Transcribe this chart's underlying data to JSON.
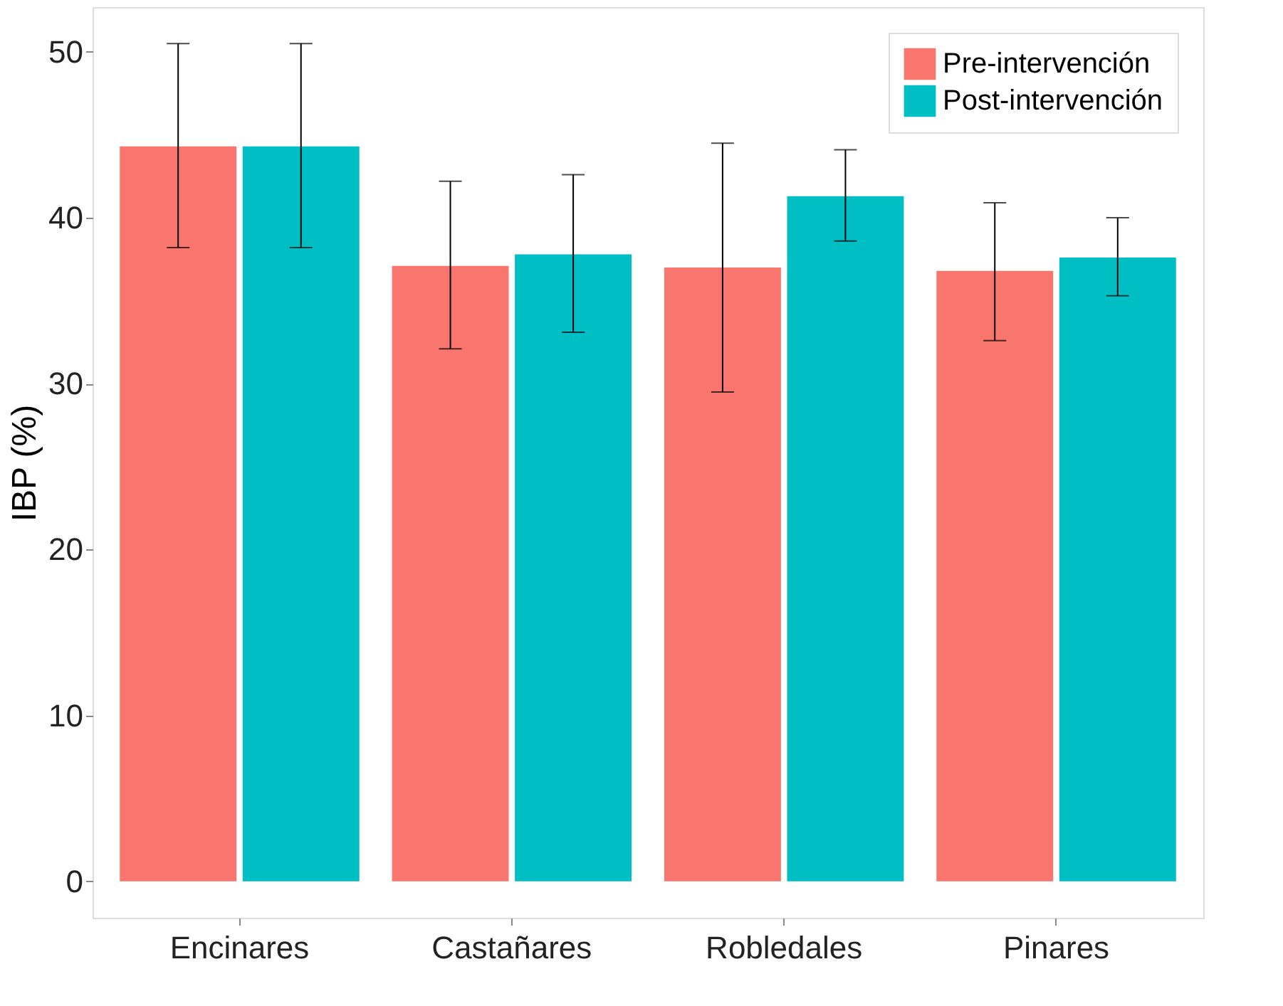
{
  "chart_data": {
    "type": "bar",
    "ylabel": "IBP (%)",
    "categories": [
      "Encinares",
      "Castañares",
      "Robledales",
      "Pinares"
    ],
    "series": [
      {
        "name": "Pre-intervención",
        "color": "#f8766d",
        "values": [
          44.3,
          37.1,
          37.0,
          36.8
        ],
        "errors": [
          [
            38.2,
            50.5
          ],
          [
            32.1,
            42.2
          ],
          [
            29.5,
            44.5
          ],
          [
            32.6,
            40.9
          ]
        ]
      },
      {
        "name": "Post-intervención",
        "color": "#00bfc4",
        "values": [
          44.3,
          37.8,
          41.3,
          37.6
        ],
        "errors": [
          [
            38.2,
            50.5
          ],
          [
            33.1,
            42.6
          ],
          [
            38.6,
            44.1
          ],
          [
            35.3,
            40.0
          ]
        ]
      }
    ],
    "ylim": [
      -2.2,
      52.7
    ],
    "yticks": [
      0,
      10,
      20,
      30,
      40,
      50
    ],
    "grid": false,
    "legend": "top right"
  }
}
